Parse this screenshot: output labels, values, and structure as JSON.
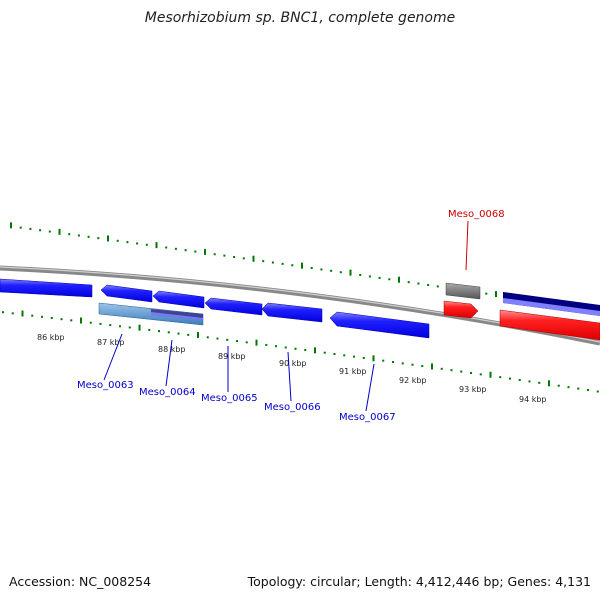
{
  "title": "Mesorhizobium sp. BNC1, complete genome",
  "footer": {
    "accession": "Accession: NC_008254",
    "topology": "Topology: circular; Length: 4,412,446 bp; Genes: 4,131"
  },
  "kbp_labels": [
    "86 kbp",
    "87 kbp",
    "88 kbp",
    "89 kbp",
    "90 kbp",
    "91 kbp",
    "92 kbp",
    "93 kbp",
    "94 kbp"
  ],
  "genes": [
    {
      "name": "Meso_0063",
      "color": "#0000cc"
    },
    {
      "name": "Meso_0064",
      "color": "#0000cc"
    },
    {
      "name": "Meso_0065",
      "color": "#0000cc"
    },
    {
      "name": "Meso_0066",
      "color": "#0000cc"
    },
    {
      "name": "Meso_0067",
      "color": "#0000cc"
    },
    {
      "name": "Meso_0068",
      "color": "#cc0000"
    }
  ],
  "colors": {
    "cds_forward": "#ff0000",
    "cds_reverse": "#0000ff",
    "ruler_ticks": "#007700",
    "backbone": "#888888",
    "other_feature": "#666666",
    "feature_light_blue": "#4f94cd",
    "feature_navy": "#000080",
    "feature_lavender": "#8080ff"
  }
}
